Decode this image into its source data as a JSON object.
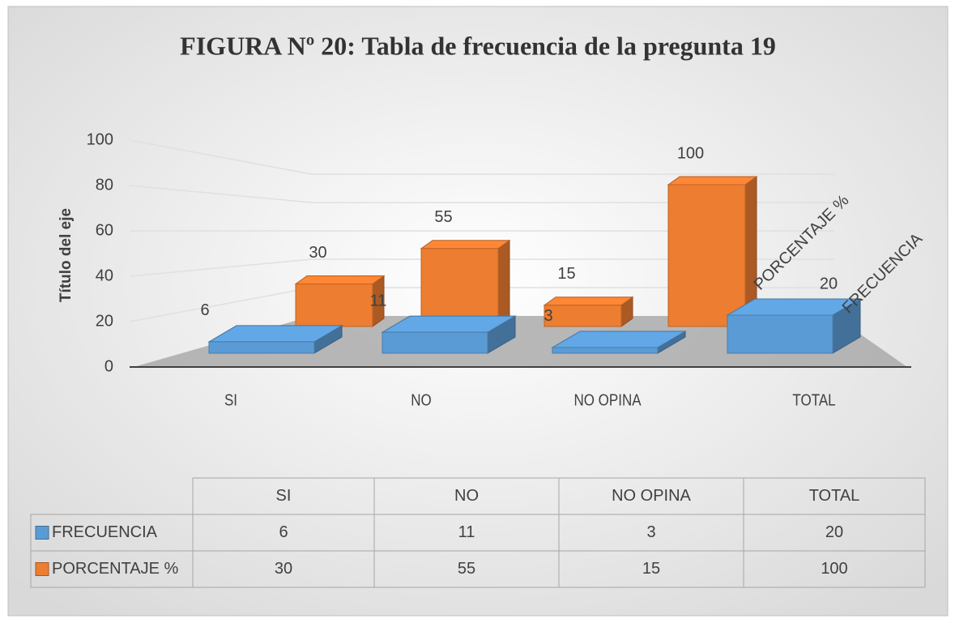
{
  "chart_data": {
    "type": "bar3d",
    "title": "FIGURA Nº 20: Tabla de frecuencia de la pregunta 19",
    "y_axis_label": "Título del eje",
    "categories": [
      "SI",
      "NO",
      "NO OPINA",
      "TOTAL"
    ],
    "series": [
      {
        "name": "FRECUENCIA",
        "color": "#5b9bd5",
        "values": [
          6,
          11,
          3,
          20
        ]
      },
      {
        "name": "PORCENTAJE %",
        "color": "#ed7d31",
        "values": [
          30,
          55,
          15,
          100
        ]
      }
    ],
    "ylim": [
      0,
      100
    ],
    "yticks": [
      0,
      20,
      40,
      60,
      80,
      100
    ],
    "grid": true,
    "data_table": true
  }
}
